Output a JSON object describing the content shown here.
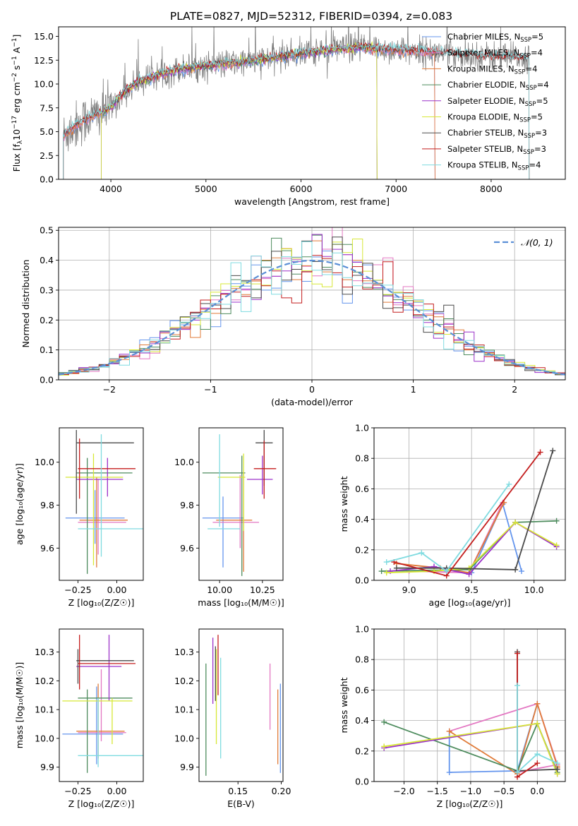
{
  "figure": {
    "title": "PLATE=0827, MJD=52312, FIBERID=0394, z=0.083"
  },
  "colors": {
    "Chabrier MILES": "#6495ED",
    "Salpeter MILES": "#E377C2",
    "Kroupa MILES": "#E07B39",
    "Chabrier ELODIE": "#4E8C5E",
    "Salpeter ELODIE": "#9B30C9",
    "Kroupa ELODIE": "#D7E836",
    "Chabrier STELIB": "#4A4A4A",
    "Salpeter STELIB": "#C41E1E",
    "Kroupa STELIB": "#7FDBE0"
  },
  "chart_data": [
    {
      "id": "spectrum",
      "type": "line",
      "title": "PLATE=0827, MJD=52312, FIBERID=0394, z=0.083",
      "xlabel": "wavelength [Angstrom, rest frame]",
      "ylabel_main": "Flux [f",
      "ylabel_sub": "λ",
      "ylabel_rest": "10",
      "ylabel_exp": "−17",
      "ylabel_tail": " erg cm",
      "ylabel_exp2": "−2",
      "ylabel_tail2": " s",
      "ylabel_exp3": "−1",
      "ylabel_tail3": " A",
      "ylabel_exp4": "−1",
      "ylabel_end": "]",
      "xlim": [
        3450,
        8780
      ],
      "ylim": [
        0,
        16
      ],
      "xticks": [
        4000,
        5000,
        6000,
        7000,
        8000
      ],
      "yticks": [
        0.0,
        2.5,
        5.0,
        7.5,
        10.0,
        12.5,
        15.0
      ],
      "data_color": "#808080",
      "continuum": {
        "x": [
          3500,
          3600,
          3700,
          3800,
          3900,
          4000,
          4100,
          4200,
          4300,
          4400,
          4500,
          4700,
          5000,
          5300,
          5600,
          6000,
          6300,
          6600,
          7000,
          7400,
          7800,
          8200,
          8400
        ],
        "y": [
          4.6,
          5.4,
          6.1,
          6.6,
          7.0,
          7.6,
          8.7,
          9.6,
          10.2,
          10.6,
          11.0,
          11.5,
          11.9,
          12.2,
          12.6,
          13.2,
          13.6,
          13.8,
          13.6,
          13.3,
          13.0,
          12.8,
          12.7
        ]
      },
      "legend": [
        {
          "label": "Chabrier MILES, N",
          "sub": "SSP",
          "tail": "=5"
        },
        {
          "label": "Salpeter MILES, N",
          "sub": "SSP",
          "tail": "=4"
        },
        {
          "label": "Kroupa MILES, N",
          "sub": "SSP",
          "tail": "=4"
        },
        {
          "label": "Chabrier ELODIE, N",
          "sub": "SSP",
          "tail": "=4"
        },
        {
          "label": "Salpeter ELODIE, N",
          "sub": "SSP",
          "tail": "=5"
        },
        {
          "label": "Kroupa ELODIE, N",
          "sub": "SSP",
          "tail": "=5"
        },
        {
          "label": "Chabrier STELIB, N",
          "sub": "SSP",
          "tail": "=3"
        },
        {
          "label": "Salpeter STELIB, N",
          "sub": "SSP",
          "tail": "=3"
        },
        {
          "label": "Kroupa STELIB, N",
          "sub": "SSP",
          "tail": "=4"
        }
      ],
      "series_names": [
        "Chabrier MILES",
        "Salpeter MILES",
        "Kroupa MILES",
        "Chabrier ELODIE",
        "Salpeter ELODIE",
        "Kroupa ELODIE",
        "Chabrier STELIB",
        "Salpeter STELIB",
        "Kroupa STELIB"
      ],
      "model_ranges": [
        [
          3500,
          7410
        ],
        [
          3500,
          7410
        ],
        [
          3500,
          7410
        ],
        [
          3900,
          6800
        ],
        [
          3900,
          6800
        ],
        [
          3900,
          6800
        ],
        [
          3500,
          8400
        ],
        [
          3500,
          8400
        ],
        [
          3500,
          8400
        ]
      ]
    },
    {
      "id": "residuals",
      "type": "histogram",
      "xlabel": "(data-model)/error",
      "ylabel": "Normed distribution",
      "xlim": [
        -2.5,
        2.5
      ],
      "ylim": [
        0,
        0.51
      ],
      "xticks": [
        -2,
        -1,
        0,
        1,
        2
      ],
      "xticklabels": [
        "−2",
        "−1",
        "0",
        "1",
        "2"
      ],
      "yticks": [
        0.0,
        0.1,
        0.2,
        0.3,
        0.4,
        0.5
      ],
      "bin_width": 0.1,
      "bin_start": -2.5,
      "grid": true,
      "legend": {
        "label": "𝒩(0, 1)",
        "position": "upper-right"
      },
      "gaussian_color": "#5B8FD6"
    },
    {
      "id": "age-vs-Z",
      "type": "errorbar",
      "xlabel": "Z [log₁₀(Z/Z☉)]",
      "ylabel": "age  [log₁₀(age/yr)]",
      "xlim": [
        -0.37,
        0.17
      ],
      "ylim": [
        9.45,
        10.16
      ],
      "xticks": [
        -0.25,
        0.0
      ],
      "xticklabels": [
        "−0.25",
        "0.00"
      ],
      "yticks": [
        9.6,
        9.8,
        10.0
      ],
      "points": [
        {
          "x": -0.14,
          "y": 9.74,
          "xlo": -0.33,
          "xhi": 0.05,
          "ylo": 9.62,
          "yhi": 9.87
        },
        {
          "x": -0.12,
          "y": 9.72,
          "xlo": -0.25,
          "xhi": 0.06,
          "ylo": 9.57,
          "yhi": 9.92
        },
        {
          "x": -0.13,
          "y": 9.73,
          "xlo": -0.24,
          "xhi": 0.07,
          "ylo": 9.51,
          "yhi": 9.93
        },
        {
          "x": -0.19,
          "y": 9.95,
          "xlo": -0.26,
          "xhi": 0.1,
          "ylo": 9.48,
          "yhi": 10.02
        },
        {
          "x": -0.06,
          "y": 9.92,
          "xlo": -0.26,
          "xhi": 0.04,
          "ylo": 9.84,
          "yhi": 10.02
        },
        {
          "x": -0.15,
          "y": 9.93,
          "xlo": -0.33,
          "xhi": 0.04,
          "ylo": 9.52,
          "yhi": 10.04
        },
        {
          "x": -0.26,
          "y": 10.09,
          "xlo": -0.26,
          "xhi": 0.11,
          "ylo": 9.76,
          "yhi": 10.15
        },
        {
          "x": -0.24,
          "y": 9.97,
          "xlo": -0.25,
          "xhi": 0.12,
          "ylo": 9.83,
          "yhi": 10.11
        },
        {
          "x": -0.1,
          "y": 9.69,
          "xlo": -0.25,
          "xhi": 0.17,
          "ylo": 9.56,
          "yhi": 10.13
        }
      ]
    },
    {
      "id": "age-vs-mass",
      "type": "errorbar",
      "xlabel": "mass [log₁₀(M/M☉)]",
      "ylabel": "",
      "xlim": [
        9.88,
        10.37
      ],
      "ylim": [
        9.45,
        10.16
      ],
      "xticks": [
        10.0,
        10.25
      ],
      "xticklabels": [
        "10.00",
        "10.25"
      ],
      "yticks": [
        9.6,
        9.8,
        10.0
      ],
      "points": [
        {
          "x": 10.02,
          "y": 9.74,
          "xlo": 9.9,
          "xhi": 10.14,
          "ylo": 9.51,
          "yhi": 9.84
        },
        {
          "x": 10.12,
          "y": 9.72,
          "xlo": 9.96,
          "xhi": 10.23,
          "ylo": 9.6,
          "yhi": 9.94
        },
        {
          "x": 10.14,
          "y": 9.73,
          "xlo": 9.98,
          "xhi": 10.19,
          "ylo": 9.49,
          "yhi": 9.95
        },
        {
          "x": 10.13,
          "y": 9.95,
          "xlo": 9.9,
          "xhi": 10.15,
          "ylo": 9.47,
          "yhi": 10.03
        },
        {
          "x": 10.25,
          "y": 9.92,
          "xlo": 10.16,
          "xhi": 10.31,
          "ylo": 9.85,
          "yhi": 10.03
        },
        {
          "x": 10.14,
          "y": 9.93,
          "xlo": 9.99,
          "xhi": 10.15,
          "ylo": 9.68,
          "yhi": 10.04
        },
        {
          "x": 10.26,
          "y": 10.09,
          "xlo": 10.21,
          "xhi": 10.31,
          "ylo": 9.89,
          "yhi": 10.15
        },
        {
          "x": 10.26,
          "y": 9.97,
          "xlo": 10.2,
          "xhi": 10.33,
          "ylo": 9.83,
          "yhi": 10.1
        },
        {
          "x": 10.0,
          "y": 9.69,
          "xlo": 9.93,
          "xhi": 10.12,
          "ylo": 9.7,
          "yhi": 10.13
        }
      ]
    },
    {
      "id": "weight-vs-age",
      "type": "line",
      "xlabel": "age  [log₁₀(age/yr)]",
      "ylabel": "mass weight",
      "xlim": [
        8.72,
        10.25
      ],
      "ylim": [
        0,
        1
      ],
      "xticks": [
        9.0,
        9.5,
        10.0
      ],
      "xticklabels": [
        "9.0",
        "9.5",
        "10.0"
      ],
      "yticks": [
        0.0,
        0.2,
        0.4,
        0.6,
        0.8,
        1.0
      ],
      "grid": true,
      "series": [
        {
          "name": "Chabrier MILES",
          "x": [
            9.5,
            9.75,
            9.9
          ],
          "y": [
            0.05,
            0.5,
            0.06
          ]
        },
        {
          "name": "Salpeter MILES",
          "x": [
            9.0,
            9.48,
            9.75
          ],
          "y": [
            0.06,
            0.05,
            0.51
          ]
        },
        {
          "name": "Kroupa MILES",
          "x": [
            8.9,
            9.25,
            9.48,
            9.76
          ],
          "y": [
            0.11,
            0.08,
            0.05,
            0.51
          ]
        },
        {
          "name": "Chabrier ELODIE",
          "x": [
            8.78,
            9.48,
            9.85,
            10.18
          ],
          "y": [
            0.06,
            0.07,
            0.38,
            0.39
          ]
        },
        {
          "name": "Salpeter ELODIE",
          "x": [
            8.85,
            9.2,
            9.48,
            9.85,
            10.18
          ],
          "y": [
            0.06,
            0.09,
            0.04,
            0.38,
            0.22
          ]
        },
        {
          "name": "Kroupa ELODIE",
          "x": [
            8.82,
            9.2,
            9.48,
            9.85,
            10.18
          ],
          "y": [
            0.05,
            0.06,
            0.08,
            0.38,
            0.23
          ]
        },
        {
          "name": "Chabrier STELIB",
          "x": [
            8.9,
            9.3,
            9.85,
            10.15
          ],
          "y": [
            0.08,
            0.08,
            0.07,
            0.85
          ]
        },
        {
          "name": "Salpeter STELIB",
          "x": [
            8.88,
            9.3,
            10.05
          ],
          "y": [
            0.12,
            0.03,
            0.84
          ]
        },
        {
          "name": "Kroupa STELIB",
          "x": [
            8.82,
            9.1,
            9.3,
            9.8
          ],
          "y": [
            0.12,
            0.18,
            0.06,
            0.63
          ]
        }
      ]
    },
    {
      "id": "mass-vs-Z",
      "type": "errorbar",
      "xlabel": "Z [log₁₀(Z/Z☉)]",
      "ylabel": "mass [log₁₀(M/M☉)]",
      "xlim": [
        -0.37,
        0.17
      ],
      "ylim": [
        9.85,
        10.38
      ],
      "xticks": [
        -0.25,
        0.0
      ],
      "xticklabels": [
        "−0.25",
        "0.00"
      ],
      "yticks": [
        9.9,
        10.0,
        10.1,
        10.2,
        10.3
      ],
      "points": [
        {
          "x": -0.13,
          "y": 10.015,
          "xlo": -0.35,
          "xhi": 0.04,
          "ylo": 9.91,
          "yhi": 10.18
        },
        {
          "x": -0.1,
          "y": 10.02,
          "xlo": -0.25,
          "xhi": 0.06,
          "ylo": 9.99,
          "yhi": 10.24
        },
        {
          "x": -0.12,
          "y": 10.025,
          "xlo": -0.26,
          "xhi": 0.05,
          "ylo": 9.93,
          "yhi": 10.19
        },
        {
          "x": -0.19,
          "y": 10.14,
          "xlo": -0.25,
          "xhi": 0.1,
          "ylo": 9.88,
          "yhi": 10.17
        },
        {
          "x": -0.05,
          "y": 10.25,
          "xlo": -0.26,
          "xhi": 0.03,
          "ylo": 10.13,
          "yhi": 10.36
        },
        {
          "x": -0.03,
          "y": 10.13,
          "xlo": -0.35,
          "xhi": 0.1,
          "ylo": 9.98,
          "yhi": 10.14
        },
        {
          "x": -0.25,
          "y": 10.27,
          "xlo": -0.26,
          "xhi": 0.11,
          "ylo": 10.19,
          "yhi": 10.31
        },
        {
          "x": -0.24,
          "y": 10.26,
          "xlo": -0.25,
          "xhi": 0.12,
          "ylo": 10.17,
          "yhi": 10.36
        },
        {
          "x": -0.12,
          "y": 9.94,
          "xlo": -0.25,
          "xhi": 0.17,
          "ylo": 9.9,
          "yhi": 10.14
        }
      ]
    },
    {
      "id": "mass-vs-EBV",
      "type": "errorbar",
      "xlabel": "E(B-V)",
      "ylabel": "",
      "xlim": [
        0.105,
        0.202
      ],
      "ylim": [
        9.85,
        10.38
      ],
      "xticks": [
        0.15,
        0.2
      ],
      "xticklabels": [
        "0.15",
        "0.20"
      ],
      "yticks": [
        9.9,
        10.0,
        10.1,
        10.2,
        10.3
      ],
      "points": [
        {
          "x": 0.199,
          "ylo": 9.88,
          "yhi": 10.19
        },
        {
          "x": 0.187,
          "ylo": 10.03,
          "yhi": 10.26
        },
        {
          "x": 0.196,
          "ylo": 9.91,
          "yhi": 10.17
        },
        {
          "x": 0.113,
          "ylo": 9.87,
          "yhi": 10.26
        },
        {
          "x": 0.121,
          "ylo": 10.12,
          "yhi": 10.35
        },
        {
          "x": 0.125,
          "ylo": 9.98,
          "yhi": 10.31
        },
        {
          "x": 0.124,
          "ylo": 10.13,
          "yhi": 10.32
        },
        {
          "x": 0.127,
          "ylo": 10.15,
          "yhi": 10.36
        },
        {
          "x": 0.13,
          "ylo": 9.93,
          "yhi": 10.28
        }
      ]
    },
    {
      "id": "weight-vs-Z",
      "type": "line",
      "xlabel": "Z [log₁₀(Z/Z☉)]",
      "ylabel": "mass weight",
      "xlim": [
        -2.45,
        0.42
      ],
      "ylim": [
        0,
        1
      ],
      "xticks": [
        -2.0,
        -1.5,
        -1.0,
        -0.5,
        0.0
      ],
      "xticklabels": [
        "−2.0",
        "−1.5",
        "−1.0",
        "−0.5",
        "0.0"
      ],
      "yticks": [
        0.0,
        0.2,
        0.4,
        0.6,
        0.8,
        1.0
      ],
      "grid": true,
      "series": [
        {
          "name": "Chabrier MILES",
          "x": [
            -1.32,
            -1.32,
            -0.3,
            0.0
          ],
          "y": [
            0.33,
            0.06,
            0.07,
            0.51
          ]
        },
        {
          "name": "Salpeter MILES",
          "x": [
            -1.32,
            0.0,
            0.3,
            -0.3
          ],
          "y": [
            0.33,
            0.51,
            0.11,
            0.06
          ]
        },
        {
          "name": "Kroupa MILES",
          "x": [
            -1.32,
            -0.3,
            0.0,
            0.3,
            0.3
          ],
          "y": [
            0.33,
            0.05,
            0.51,
            0.1,
            0.09
          ]
        },
        {
          "name": "Chabrier ELODIE",
          "x": [
            -2.3,
            -0.3,
            0.0,
            0.3
          ],
          "y": [
            0.39,
            0.07,
            0.38,
            0.06
          ]
        },
        {
          "name": "Salpeter ELODIE",
          "x": [
            -2.3,
            0.0,
            0.3
          ],
          "y": [
            0.22,
            0.38,
            0.05
          ]
        },
        {
          "name": "Kroupa ELODIE",
          "x": [
            -2.3,
            0.0,
            0.3
          ],
          "y": [
            0.23,
            0.38,
            0.05
          ]
        },
        {
          "name": "Chabrier STELIB",
          "x": [
            0.3,
            -0.3,
            -0.3
          ],
          "y": [
            0.08,
            0.07,
            0.85
          ]
        },
        {
          "name": "Salpeter STELIB",
          "x": [
            0.0,
            -0.3,
            -0.3
          ],
          "y": [
            0.12,
            0.03,
            0.84
          ]
        },
        {
          "name": "Kroupa STELIB",
          "x": [
            0.3,
            0.0,
            -0.3,
            -0.3
          ],
          "y": [
            0.12,
            0.18,
            0.06,
            0.63
          ]
        }
      ]
    }
  ]
}
